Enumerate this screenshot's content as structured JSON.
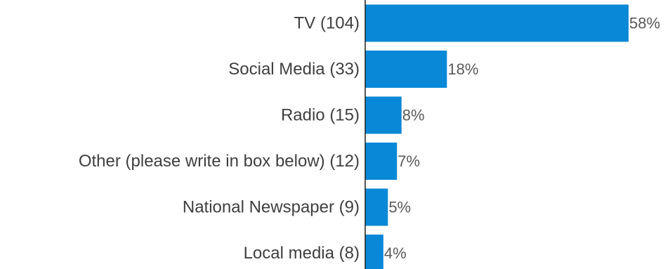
{
  "chart_data": {
    "type": "bar",
    "orientation": "horizontal",
    "categories": [
      "TV (104)",
      "Social Media (33)",
      "Radio (15)",
      "Other (please write in box below) (12)",
      "National Newspaper (9)",
      "Local media (8)"
    ],
    "values": [
      58,
      18,
      8,
      7,
      5,
      4
    ],
    "value_labels": [
      "58%",
      "18%",
      "8%",
      "7%",
      "5%",
      "4%"
    ],
    "unit": "%",
    "xlim": [
      0,
      58
    ],
    "colors": {
      "bar": "#0888d6"
    },
    "grid": false,
    "legend": "none"
  }
}
